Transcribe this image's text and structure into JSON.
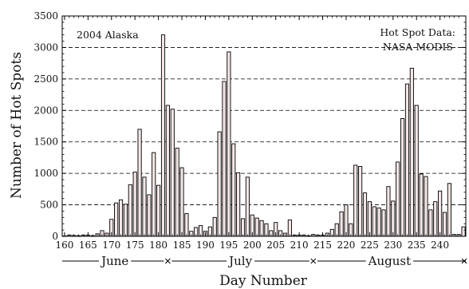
{
  "chart_data": {
    "type": "bar",
    "title": "",
    "xlabel": "Day Number",
    "ylabel": "Number of Hot Spots",
    "xlim": [
      159.5,
      245.5
    ],
    "ylim": [
      0,
      3500
    ],
    "yticks": [
      0,
      500,
      1000,
      1500,
      2000,
      2500,
      3000,
      3500
    ],
    "xticks": [
      160,
      165,
      170,
      175,
      180,
      185,
      190,
      195,
      200,
      205,
      210,
      215,
      220,
      225,
      230,
      235,
      240
    ],
    "grid": "horizontal dashed",
    "bar_color": "#f3e6e6",
    "annotations": {
      "region": "2004 Alaska",
      "source_line1": "Hot Spot Data:",
      "source_line2": "NASA MODIS"
    },
    "months": [
      {
        "label": "June",
        "start": 159.5,
        "end": 182
      },
      {
        "label": "July",
        "start": 182,
        "end": 213
      },
      {
        "label": "August",
        "start": 213,
        "end": 245.5
      }
    ],
    "x": [
      160,
      161,
      162,
      163,
      164,
      165,
      166,
      167,
      168,
      169,
      170,
      171,
      172,
      173,
      174,
      175,
      176,
      177,
      178,
      179,
      180,
      181,
      182,
      183,
      184,
      185,
      186,
      187,
      188,
      189,
      190,
      191,
      192,
      193,
      194,
      195,
      196,
      197,
      198,
      199,
      200,
      201,
      202,
      203,
      204,
      205,
      206,
      207,
      208,
      209,
      210,
      211,
      212,
      213,
      214,
      215,
      216,
      217,
      218,
      219,
      220,
      221,
      222,
      223,
      224,
      225,
      226,
      227,
      228,
      229,
      230,
      231,
      232,
      233,
      234,
      235,
      236,
      237,
      238,
      239,
      240,
      241,
      242,
      243,
      244,
      245
    ],
    "values": [
      5,
      20,
      15,
      10,
      20,
      20,
      10,
      40,
      90,
      50,
      270,
      530,
      580,
      510,
      820,
      1020,
      1700,
      940,
      660,
      1330,
      810,
      3200,
      2080,
      2020,
      1400,
      1090,
      360,
      80,
      140,
      170,
      80,
      150,
      300,
      1660,
      2460,
      2930,
      1470,
      1010,
      280,
      940,
      340,
      290,
      250,
      200,
      90,
      220,
      90,
      50,
      260,
      20,
      20,
      20,
      10,
      30,
      20,
      20,
      50,
      110,
      200,
      390,
      500,
      200,
      1130,
      1110,
      690,
      550,
      470,
      450,
      420,
      790,
      560,
      1180,
      1870,
      2420,
      2670,
      2080,
      990,
      950,
      420,
      550,
      720,
      380,
      840,
      30,
      30,
      150
    ]
  }
}
